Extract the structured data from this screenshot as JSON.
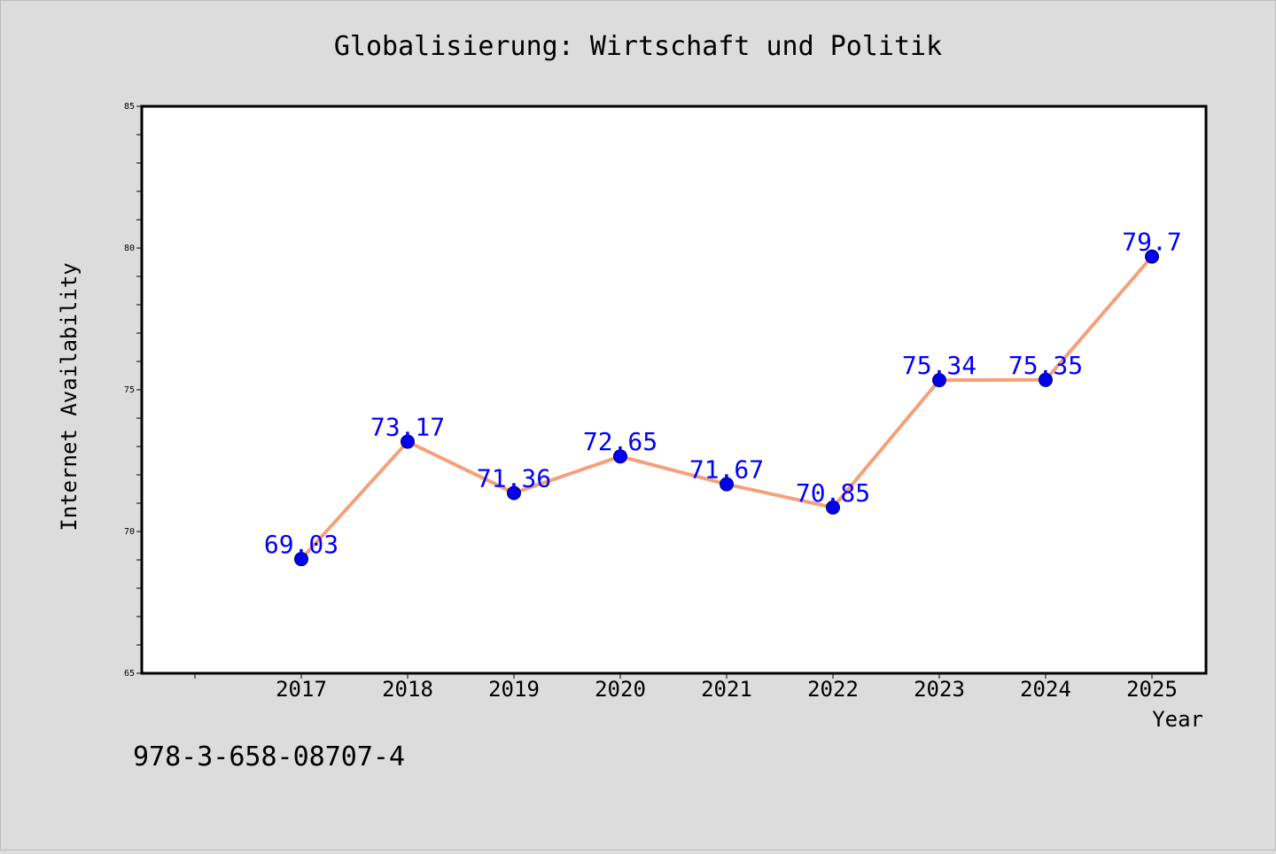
{
  "chart_data": {
    "type": "line",
    "title": "Globalisierung: Wirtschaft und Politik",
    "xlabel": "Year",
    "ylabel": "Internet Availability",
    "categories": [
      "2017",
      "2018",
      "2019",
      "2020",
      "2021",
      "2022",
      "2023",
      "2024",
      "2025"
    ],
    "series": [
      {
        "values": [
          69.03,
          73.17,
          71.36,
          72.65,
          71.67,
          70.85,
          75.34,
          75.35,
          79.7
        ],
        "labels": [
          "69.03",
          "73.17",
          "71.36",
          "72.65",
          "71.67",
          "70.85",
          "75.34",
          "75.35",
          "79.7"
        ],
        "line_color": "#f5a07a",
        "marker_color": "#0000ee",
        "label_color": "#0000ff"
      }
    ],
    "ylim": [
      65,
      85
    ],
    "yticks": [
      "65",
      "70",
      "75",
      "80",
      "85"
    ],
    "grid": false,
    "legend": false
  },
  "footer": {
    "isbn": "978-3-658-08707-4"
  },
  "colors": {
    "background": "#dcdcdc",
    "plot_background": "#ffffff",
    "axis": "#000000"
  }
}
